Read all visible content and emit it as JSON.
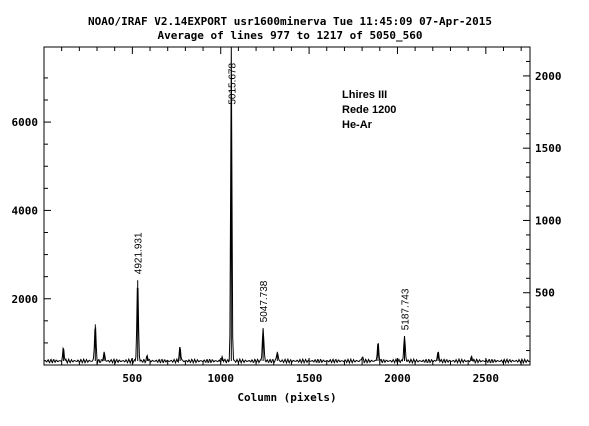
{
  "header": {
    "line1": "NOAO/IRAF V2.14EXPORT usr1600minerva Tue 11:45:09 07-Apr-2015",
    "line2": "Average of lines 977 to 1217 of 5050_560"
  },
  "annotation": {
    "line1": "Lhires III",
    "line2": "Rede 1200",
    "line3": "He-Ar"
  },
  "chart_data": {
    "type": "line",
    "title": "",
    "xlabel": "Column (pixels)",
    "ylabel": "",
    "xlim": [
      0,
      2750
    ],
    "ylim": [
      500,
      7700
    ],
    "y2lim": [
      0,
      2200
    ],
    "x_ticks": [
      500,
      1000,
      1500,
      2000,
      2500
    ],
    "x_tick_labels": [
      "500",
      "1000",
      "1500",
      "2000",
      "2500"
    ],
    "y_ticks": [
      2000,
      4000,
      6000
    ],
    "y_tick_labels": [
      "2000",
      "4000",
      "6000"
    ],
    "y2_ticks": [
      500,
      1000,
      1500,
      2000
    ],
    "y2_tick_labels": [
      "500",
      "1000",
      "1500",
      "2000"
    ],
    "baseline": 590,
    "peaks": [
      {
        "x": 110,
        "y": 880
      },
      {
        "x": 290,
        "y": 1420
      },
      {
        "x": 340,
        "y": 780
      },
      {
        "x": 530,
        "y": 2420,
        "label": "4921.931"
      },
      {
        "x": 585,
        "y": 700
      },
      {
        "x": 770,
        "y": 900
      },
      {
        "x": 1010,
        "y": 660
      },
      {
        "x": 1060,
        "y": 7700,
        "label": "5015.678"
      },
      {
        "x": 1240,
        "y": 1330,
        "label": "5047.738"
      },
      {
        "x": 1320,
        "y": 800
      },
      {
        "x": 1800,
        "y": 680
      },
      {
        "x": 1890,
        "y": 990
      },
      {
        "x": 2040,
        "y": 1150,
        "label": "5187.743"
      },
      {
        "x": 2230,
        "y": 790
      },
      {
        "x": 2420,
        "y": 680
      }
    ]
  }
}
